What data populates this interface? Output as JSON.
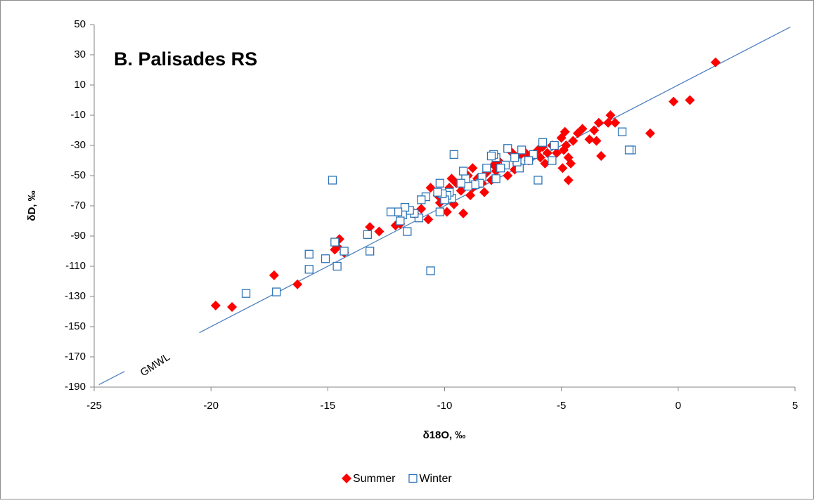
{
  "chart_data": {
    "type": "scatter",
    "title": "B.  Palisades RS",
    "xlabel": "δ18O, ‰",
    "ylabel": "δD, ‰",
    "xlim": [
      -25,
      5
    ],
    "ylim": [
      -190,
      50
    ],
    "xticks": [
      -25,
      -20,
      -15,
      -10,
      -5,
      0,
      5
    ],
    "yticks": [
      -190,
      -170,
      -150,
      -130,
      -110,
      -90,
      -70,
      -50,
      -30,
      -10,
      10,
      30,
      50
    ],
    "grid": false,
    "legend": "bottom",
    "line": {
      "label": "GMWL",
      "color": "#4f81bd",
      "x": [
        -24.8,
        -23.7,
        -22,
        -20.5,
        4.8
      ],
      "y": [
        -188.4,
        -179.6,
        null,
        -154,
        48.4
      ]
    },
    "series": [
      {
        "name": "Summer",
        "color": "#ff0000",
        "marker": "diamond",
        "x": [
          1.6,
          0.5,
          -0.2,
          -1.2,
          -2.7,
          -2.9,
          -3.0,
          -3.3,
          -3.4,
          -3.5,
          -3.6,
          -3.8,
          -4.1,
          -4.3,
          -4.5,
          -4.6,
          -4.7,
          -4.7,
          -4.8,
          -4.85,
          -4.9,
          -4.95,
          -5.0,
          -5.2,
          -5.4,
          -5.6,
          -5.7,
          -5.8,
          -5.9,
          -6.0,
          -6.2,
          -6.4,
          -6.5,
          -6.6,
          -6.8,
          -6.9,
          -7.0,
          -7.1,
          -7.3,
          -7.5,
          -7.7,
          -7.8,
          -7.9,
          -8.0,
          -8.2,
          -8.3,
          -8.4,
          -8.6,
          -8.8,
          -8.8,
          -8.9,
          -9.0,
          -9.2,
          -9.3,
          -9.5,
          -9.6,
          -9.7,
          -9.8,
          -9.9,
          -10.0,
          -10.2,
          -10.3,
          -10.6,
          -10.7,
          -11.0,
          -11.3,
          -11.9,
          -12.1,
          -12.8,
          -13.2,
          -14.3,
          -14.5,
          -14.6,
          -14.7,
          -16.3,
          -17.3,
          -19.1,
          -19.8
        ],
        "values": [
          25,
          0,
          -1,
          -22,
          -15,
          -10,
          -15,
          -37,
          -15,
          -27,
          -20,
          -26,
          -19,
          -22,
          -27,
          -42,
          -38,
          -53,
          -30,
          -21,
          -33,
          -45,
          -25,
          -35,
          -30,
          -35,
          -42,
          -31,
          -38,
          -33,
          -36,
          -40,
          -36,
          -34,
          -37,
          -42,
          -46,
          -35,
          -50,
          -44,
          -40,
          -47,
          -43,
          -53,
          -48,
          -61,
          -55,
          -52,
          -58,
          -45,
          -63,
          -50,
          -75,
          -60,
          -55,
          -69,
          -52,
          -58,
          -74,
          -65,
          -68,
          -63,
          -58,
          -79,
          -72,
          -75,
          -82,
          -83,
          -87,
          -84,
          -101,
          -92,
          -97,
          -99,
          -122,
          -116,
          -137,
          -136
        ]
      },
      {
        "name": "Winter",
        "color": "#2e75b6",
        "marker": "square",
        "x": [
          -2.0,
          -2.1,
          -2.4,
          -5.4,
          -5.3,
          -5.8,
          -6.0,
          -6.2,
          -6.4,
          -6.7,
          -6.8,
          -6.9,
          -7.0,
          -7.3,
          -7.4,
          -7.6,
          -7.8,
          -7.8,
          -7.9,
          -8.0,
          -8.2,
          -8.4,
          -8.5,
          -8.7,
          -9.0,
          -9.1,
          -9.2,
          -9.3,
          -9.6,
          -9.7,
          -9.8,
          -9.9,
          -10.0,
          -10.1,
          -10.2,
          -10.2,
          -10.3,
          -10.6,
          -10.8,
          -11.0,
          -11.1,
          -11.3,
          -11.5,
          -11.6,
          -11.7,
          -11.8,
          -11.9,
          -12.0,
          -12.3,
          -13.2,
          -13.3,
          -14.3,
          -14.6,
          -14.7,
          -14.8,
          -15.1,
          -15.8,
          -15.8,
          -17.2,
          -18.5
        ],
        "values": [
          -33,
          -33,
          -21,
          -40,
          -30,
          -28,
          -53,
          -36,
          -40,
          -33,
          -45,
          -41,
          -38,
          -32,
          -43,
          -45,
          -38,
          -52,
          -36,
          -37,
          -45,
          -51,
          -55,
          -56,
          -57,
          -52,
          -47,
          -55,
          -36,
          -65,
          -61,
          -63,
          -66,
          -62,
          -74,
          -55,
          -61,
          -113,
          -64,
          -66,
          -78,
          -75,
          -73,
          -87,
          -71,
          -76,
          -80,
          -74,
          -74,
          -100,
          -89,
          -100,
          -110,
          -94,
          -53,
          -105,
          -102,
          -112,
          -127,
          -128
        ]
      }
    ]
  }
}
